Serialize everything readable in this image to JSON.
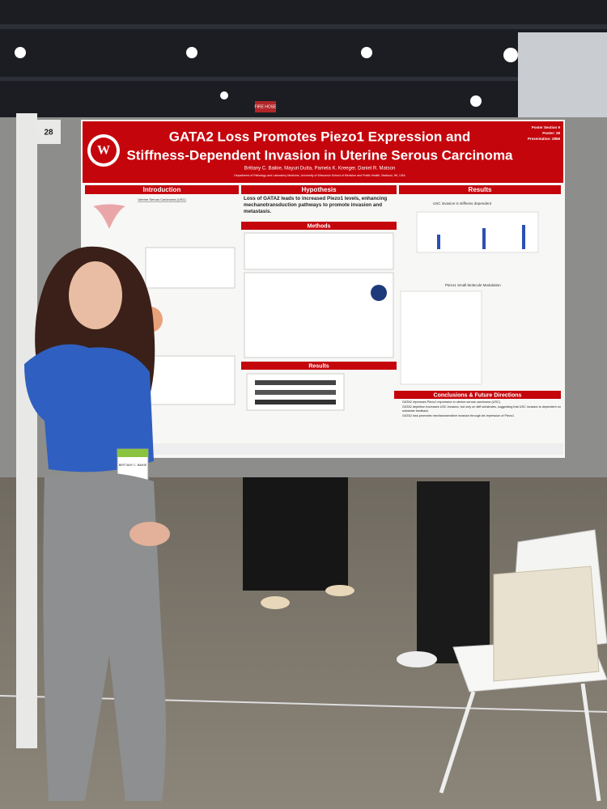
{
  "booth_number": "28",
  "sign": "FIRE HOSE",
  "poster": {
    "title": [
      "GATA2 Loss Promotes Piezo1 Expression and",
      "Stiffness-Dependent Invasion in Uterine Serous Carcinoma"
    ],
    "authors": "Brittany C. Baikie, Mayuri Dutta, Pamela K. Kreeger, Daniel R. Matson",
    "affiliation": "Department of Pathology and Laboratory Medicine, University of Wisconsin School of Medicine and Public Health, Madison, WI, USA",
    "meta": [
      "Poster Section 9",
      "Poster: 28",
      "Presentation: 2858"
    ],
    "sections": {
      "introduction": "Introduction",
      "hypothesis": "Hypothesis",
      "methods": "Methods",
      "results_middle": "Results",
      "results_right": "Results",
      "conclusions": "Conclusions & Future Directions"
    },
    "intro_heading": "Uterine Serous Carcinoma (USC)",
    "hypothesis_text": "Loss of GATA2 leads to increased Piezo1 levels, enhancing mechanotransduction pathways to promote invasion and metastasis.",
    "results_labels": [
      "USC invasion is stiffness dependent",
      "Piezo1 Small Molecule Modulation"
    ],
    "conclusions": [
      "GATA2 represses Piezo1 expression in uterine serous carcinoma (USC)",
      "GATA2 depletion increases USC invasion, but only on stiff substrates, suggesting that USC invasion is dependent on substrate feedback",
      "GATA2 loss promotes mechanosensitive invasion through de-repression of Piezo1"
    ]
  },
  "badge": "BRITTANY C. BAIKIE"
}
